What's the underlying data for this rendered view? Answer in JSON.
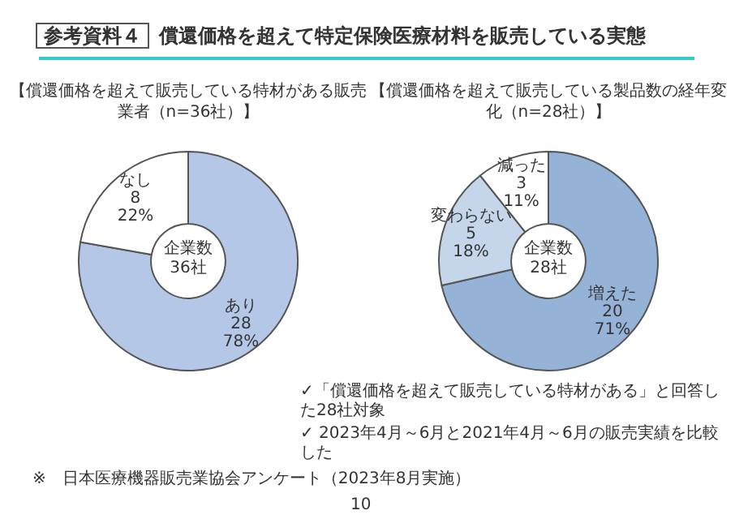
{
  "chart_data": [
    {
      "type": "donut",
      "title": "【償還価格を超えて販売している特材がある販売業者（n=36社）】",
      "categories": [
        "あり",
        "なし"
      ],
      "values": [
        28,
        8
      ],
      "colors": [
        "#b4c7e7",
        "#ffffff"
      ],
      "value_labels": [
        "28\n78%",
        "8\n22%"
      ],
      "annotations": [
        "参考資料４",
        "償還価格を超えて特定保険医療材料を販売している実態",
        "企業数\n36社",
        "※　日本医療機器販売業協会アンケート（2023年8月実施）",
        "10"
      ]
    },
    {
      "type": "donut",
      "title": "【償還価格を超えて販売している製品数の経年変化（n=28社）】",
      "categories": [
        "増えた",
        "変わらない",
        "減った"
      ],
      "values": [
        20,
        5,
        3
      ],
      "colors": [
        "#95b3d7",
        "#c5d5ea",
        "#ffffff"
      ],
      "value_labels": [
        "20\n71%",
        "5\n18%",
        "3\n11%"
      ],
      "annotations": [
        "企業数\n28社",
        "✓「償還価格を超えて販売している特材がある」と回答した28社対象",
        "✓ 2023年4月～6月と2021年4月～6月の販売実績を比較した"
      ]
    }
  ]
}
